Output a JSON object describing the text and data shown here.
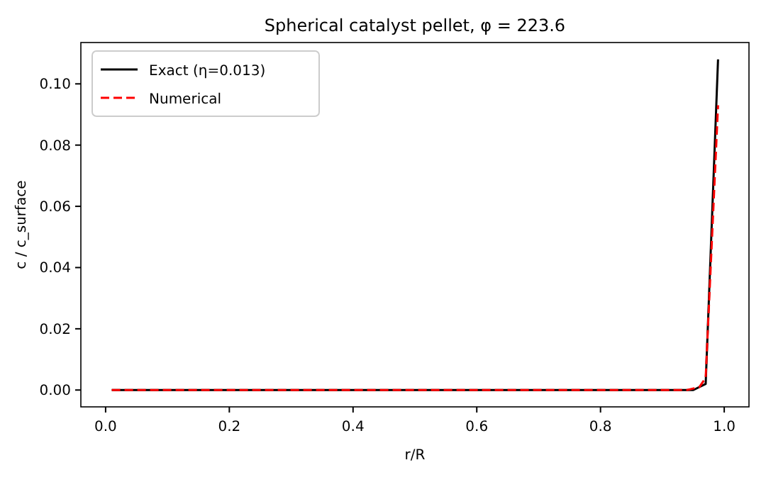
{
  "chart_data": {
    "type": "line",
    "title": "Spherical catalyst pellet, φ = 223.6",
    "xlabel": "r/R",
    "ylabel": "c / c_surface",
    "xlim": [
      -0.04,
      1.04
    ],
    "xticks": [
      {
        "value": 0,
        "label": "0.0"
      },
      {
        "value": 0.2,
        "label": "0.2"
      },
      {
        "value": 0.4,
        "label": "0.4"
      },
      {
        "value": 0.6,
        "label": "0.6"
      },
      {
        "value": 0.8,
        "label": "0.8"
      },
      {
        "value": 1,
        "label": "1.0"
      }
    ],
    "ylim": [
      -0.0055,
      0.1135
    ],
    "yticks": [
      {
        "value": 0,
        "label": "0.00"
      },
      {
        "value": 0.02,
        "label": "0.02"
      },
      {
        "value": 0.04,
        "label": "0.04"
      },
      {
        "value": 0.06,
        "label": "0.06"
      },
      {
        "value": 0.08,
        "label": "0.08"
      },
      {
        "value": 0.1,
        "label": "0.10"
      }
    ],
    "legend": "top left",
    "grid": false,
    "series": [
      {
        "name": "Exact (η=0.013)",
        "color": "#000000",
        "line_style": "solid",
        "x": [
          0.01,
          0.5,
          0.95,
          0.97,
          0.99
        ],
        "values": [
          0,
          0,
          0,
          0.002,
          0.108
        ]
      },
      {
        "name": "Numerical",
        "color": "#ff0000",
        "line_style": "dashed",
        "x": [
          0.01,
          0.5,
          0.94,
          0.96,
          0.97,
          0.99
        ],
        "values": [
          0,
          0,
          0,
          0.001,
          0.004,
          0.093
        ]
      }
    ]
  }
}
